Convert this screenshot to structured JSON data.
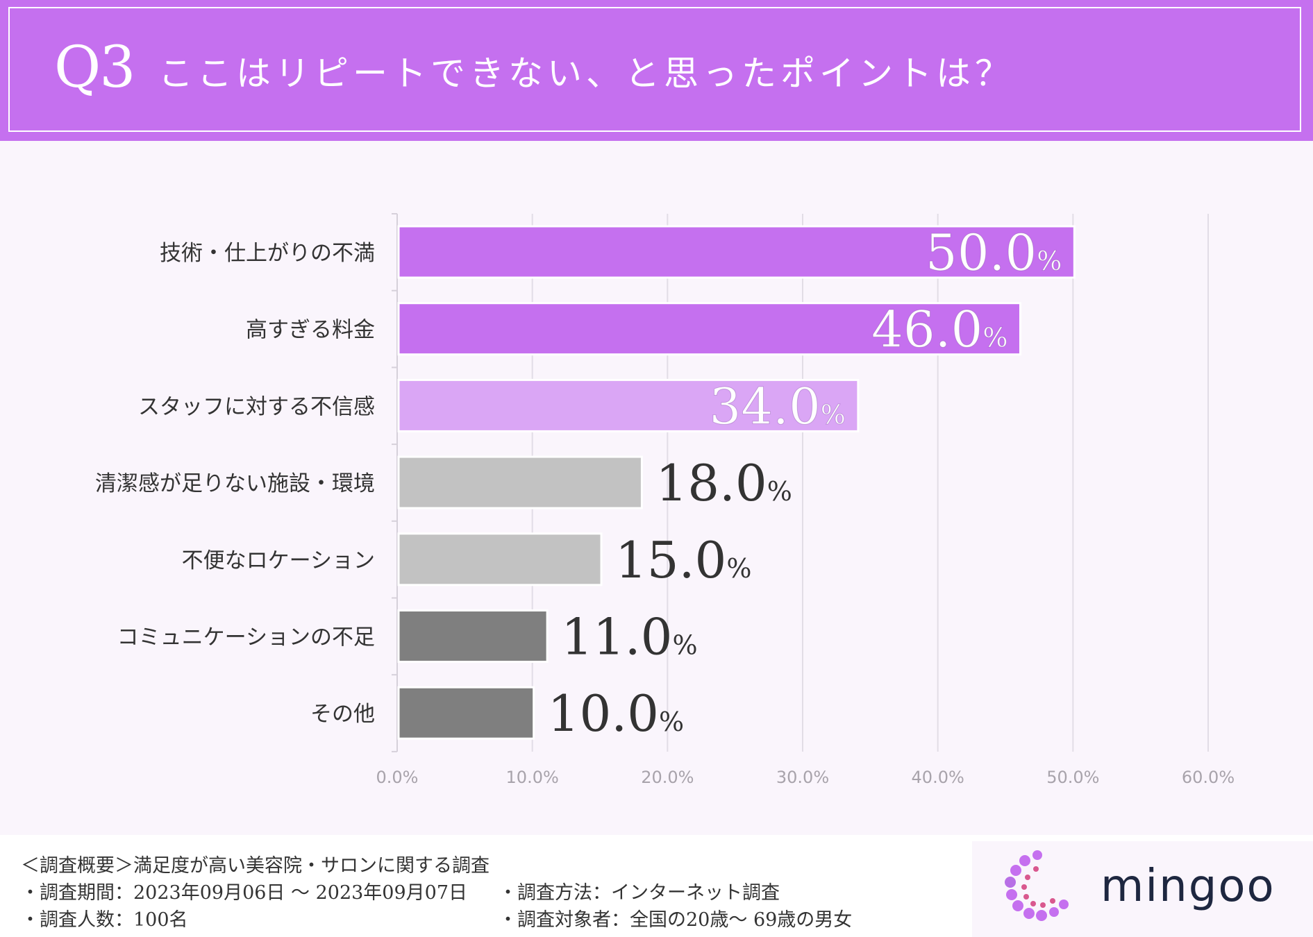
{
  "header": {
    "q_number": "Q3",
    "title": "ここはリピートできない、と思ったポイントは？"
  },
  "chart_data": {
    "type": "bar",
    "orientation": "horizontal",
    "categories": [
      "技術・仕上がりの不満",
      "高すぎる料金",
      "スタッフに対する不信感",
      "清潔感が足りない施設・環境",
      "不便なロケーション",
      "コミュニケーションの不足",
      "その他"
    ],
    "values": [
      50.0,
      46.0,
      34.0,
      18.0,
      15.0,
      11.0,
      10.0
    ],
    "value_labels": [
      "50.0",
      "46.0",
      "34.0",
      "18.0",
      "15.0",
      "11.0",
      "10.0"
    ],
    "value_unit": "%",
    "xlim": [
      0,
      60
    ],
    "ticks": [
      "0.0%",
      "10.0%",
      "20.0%",
      "30.0%",
      "40.0%",
      "50.0%",
      "60.0%"
    ],
    "tick_values": [
      0,
      10,
      20,
      30,
      40,
      50,
      60
    ],
    "grid": true,
    "bar_colors": [
      "#c570ef",
      "#c570ef",
      "#daa6f5",
      "#c2c2c2",
      "#c2c2c2",
      "#7f7f7f",
      "#7f7f7f"
    ]
  },
  "footer": {
    "summary": "＜調査概要＞満足度が高い美容院・サロンに関する調査",
    "period": "・調査期間：2023年09月06日 ～ 2023年09月07日",
    "method": "・調査方法：インターネット調査",
    "count": "・調査人数：100名",
    "target": "・調査対象者：全国の20歳～ 69歳の男女"
  },
  "logo": {
    "text": "mingoo"
  },
  "colors": {
    "accent": "#c570ef",
    "accent_light": "#daa6f5",
    "grey_light": "#c2c2c2",
    "grey_dark": "#7f7f7f",
    "logo_text": "#1e2740"
  }
}
